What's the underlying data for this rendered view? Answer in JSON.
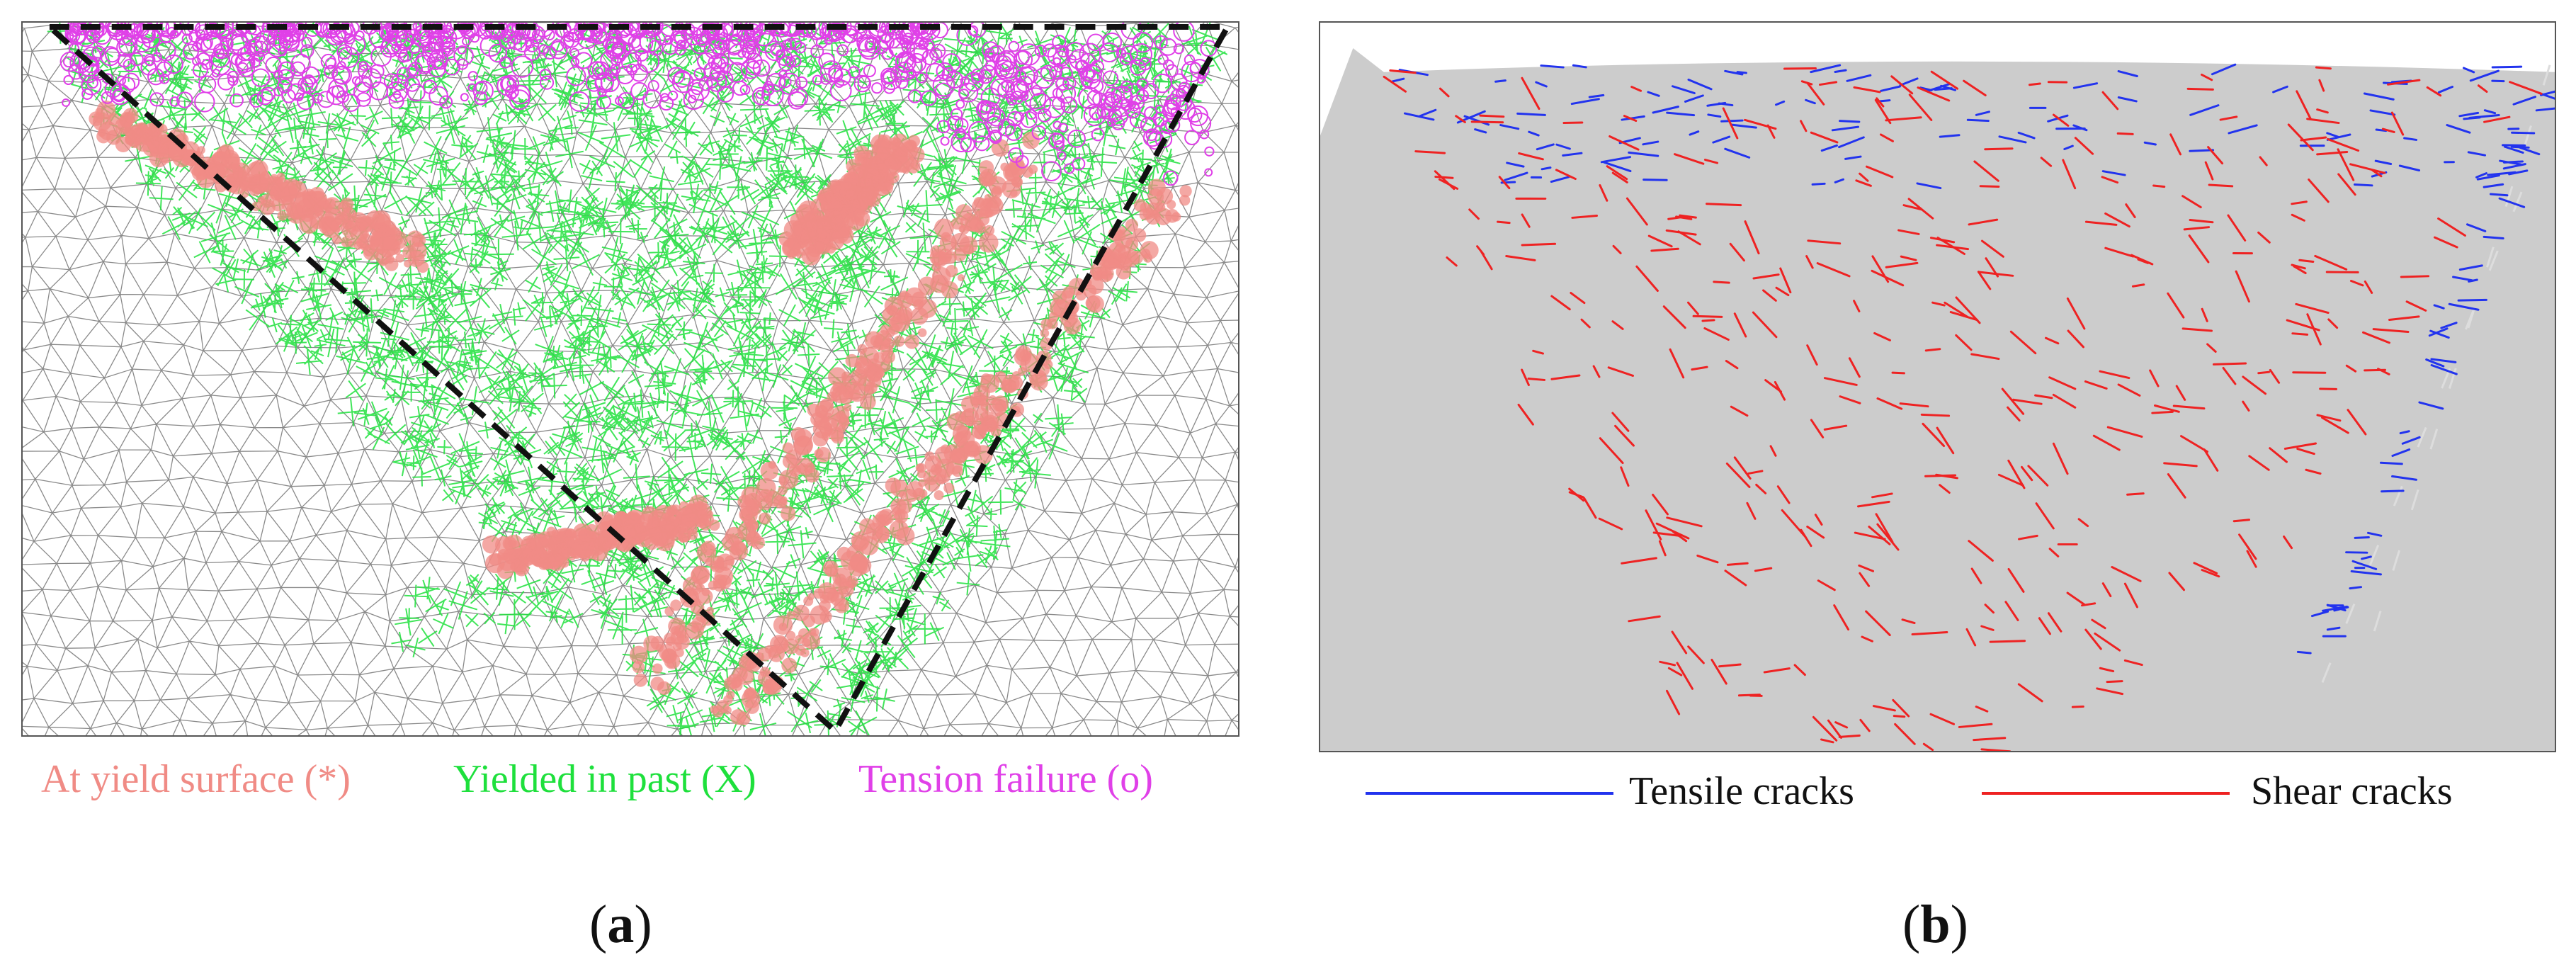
{
  "colors": {
    "mesh": "#8a8a8a",
    "yield_now": "#f08b85",
    "yield_past": "#1ee03c",
    "tension": "#e040e8",
    "tensile_crack": "#2233ee",
    "shear_crack": "#ee2222",
    "panel_b_bg": "#cccccc",
    "dashed": "#111111"
  },
  "panel_a": {
    "legend": [
      {
        "label": "At yield surface (*)",
        "color": "#f08b85"
      },
      {
        "label": "Yielded in past (X)",
        "color": "#1ee03c"
      },
      {
        "label": "Tension failure (o)",
        "color": "#e040e8"
      }
    ],
    "caption_open": "(",
    "caption_letter": "a",
    "caption_close": ")"
  },
  "panel_b": {
    "legend": [
      {
        "label": "Tensile cracks",
        "color": "#2233ee"
      },
      {
        "label": "Shear cracks",
        "color": "#ee2222"
      }
    ],
    "caption_open": "(",
    "caption_letter": "b",
    "caption_close": ")"
  }
}
